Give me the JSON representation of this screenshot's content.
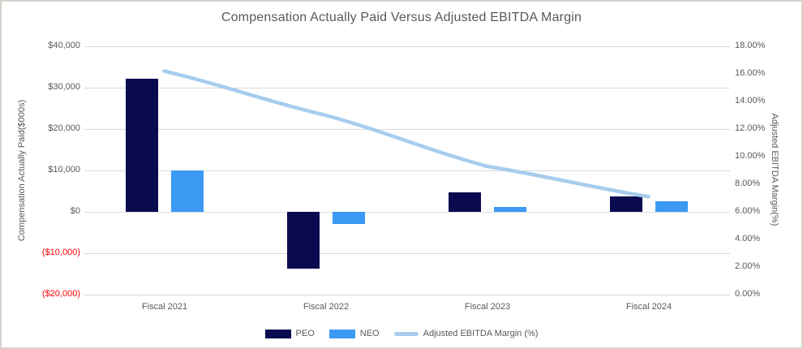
{
  "title": "Compensation Actually Paid Versus Adjusted EBITDA Margin",
  "chart_data": {
    "type": "combo-bar-line",
    "title": "Compensation Actually Paid Versus Adjusted EBITDA Margin",
    "categories": [
      "Fiscal 2021",
      "Fiscal 2022",
      "Fiscal 2023",
      "Fiscal 2024"
    ],
    "series": [
      {
        "name": "PEO",
        "type": "bar",
        "axis": "left",
        "color": "#0a0a50",
        "values": [
          32100,
          -13700,
          4700,
          3700
        ]
      },
      {
        "name": "NEO",
        "type": "bar",
        "axis": "left",
        "color": "#3b99f4",
        "values": [
          10000,
          -2900,
          1100,
          2600
        ]
      },
      {
        "name": "Adjusted EBITDA Margin (%)",
        "type": "line",
        "axis": "right",
        "color": "#a6ccee",
        "values": [
          16.2,
          13.0,
          9.3,
          7.1
        ]
      }
    ],
    "left_axis": {
      "label": "Compensation Actually Paid($000s)",
      "ticks": [
        "$40,000",
        "$30,000",
        "$20,000",
        "$10,000",
        "$0",
        "($10,000)",
        "($20,000)"
      ],
      "tick_values": [
        40000,
        30000,
        20000,
        10000,
        0,
        -10000,
        -20000
      ],
      "range": [
        -20000,
        40000
      ],
      "negative_tick_color": "#ff0000",
      "units": "$000s"
    },
    "right_axis": {
      "label": "Adjusted EBITDA Margin(%)",
      "ticks": [
        "18.00%",
        "16.00%",
        "14.00%",
        "12.00%",
        "10.00%",
        "8.00%",
        "6.00%",
        "4.00%",
        "2.00%",
        "0.00%"
      ],
      "tick_values": [
        18,
        16,
        14,
        12,
        10,
        8,
        6,
        4,
        2,
        0
      ],
      "range": [
        0,
        18
      ]
    },
    "legend": [
      {
        "label": "PEO",
        "swatch": "bar",
        "color": "#0a0a50"
      },
      {
        "label": "NEO",
        "swatch": "bar",
        "color": "#3b99f4"
      },
      {
        "label": "Adjusted EBITDA Margin (%)",
        "swatch": "line",
        "color": "#a6ccee"
      }
    ],
    "grid": true,
    "legend_position": "bottom",
    "colors": {
      "grid": "#d9d9d9",
      "text": "#595959",
      "negative_text": "#ff0000",
      "card_border": "#d6d1cb",
      "background": "#ffffff"
    }
  }
}
